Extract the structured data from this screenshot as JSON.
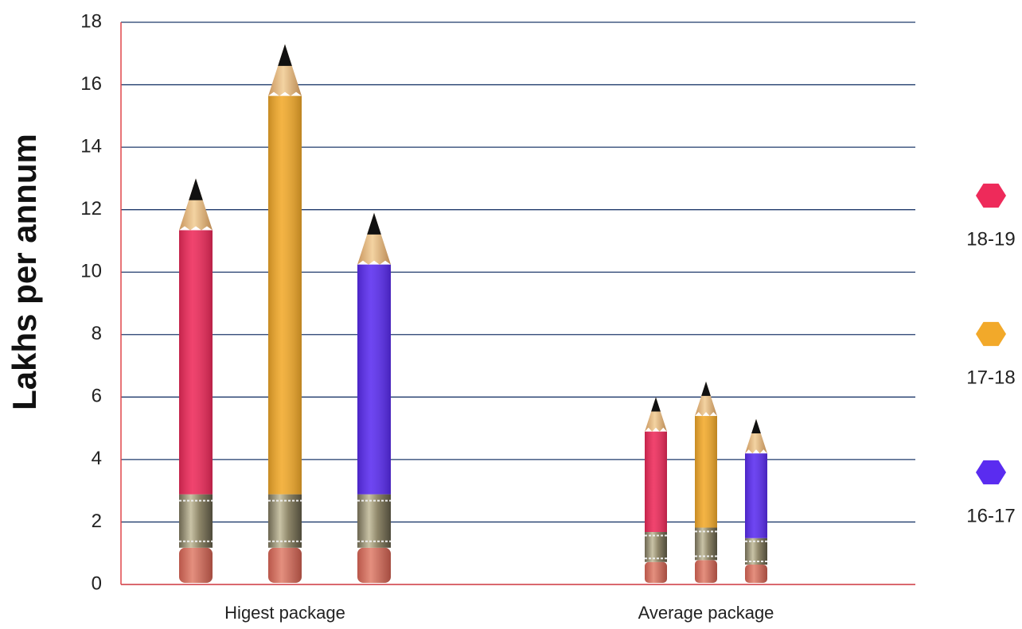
{
  "chart_data": {
    "type": "bar",
    "y_label": "Lakhs per annum",
    "categories": [
      "Higest package",
      "Average package"
    ],
    "series": [
      {
        "name": "18-19",
        "color": "#ee2a5a",
        "values": [
          13,
          6
        ]
      },
      {
        "name": "17-18",
        "color": "#f2a92a",
        "values": [
          17.3,
          6.5
        ]
      },
      {
        "name": "16-17",
        "color": "#5a2cf0",
        "values": [
          11.9,
          5.3
        ]
      }
    ],
    "ylim": [
      0,
      18
    ],
    "yticks": [
      0,
      2,
      4,
      6,
      8,
      10,
      12,
      14,
      16,
      18
    ],
    "grid": true,
    "legend": "right"
  }
}
